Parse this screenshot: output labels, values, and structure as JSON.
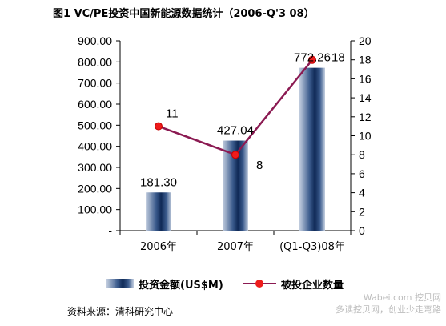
{
  "title": "图1 VC/PE投资中国新能源数据统计（2006-Q'3 08）",
  "chart_data": {
    "type": "bar",
    "categories": [
      "2006年",
      "2007年",
      "(Q1-Q3)08年"
    ],
    "series": [
      {
        "name": "投资金额(US$M)",
        "type": "bar",
        "axis": "left",
        "values": [
          181.3,
          427.04,
          772.26
        ],
        "labels": [
          "181.30",
          "427.04",
          "772.26"
        ]
      },
      {
        "name": "被投企业数量",
        "type": "line",
        "axis": "right",
        "values": [
          11,
          8,
          18
        ],
        "labels": [
          "11",
          "8",
          "18"
        ]
      }
    ],
    "y_left": {
      "range": [
        0,
        900
      ],
      "ticks": [
        "-",
        "100.00",
        "200.00",
        "300.00",
        "400.00",
        "500.00",
        "600.00",
        "700.00",
        "800.00",
        "900.00"
      ]
    },
    "y_right": {
      "range": [
        0,
        20
      ],
      "ticks": [
        "0",
        "2",
        "4",
        "6",
        "8",
        "10",
        "12",
        "14",
        "16",
        "18",
        "20"
      ]
    },
    "grid": false,
    "legend_position": "bottom",
    "colors": {
      "bar_dark": "#0f2956",
      "bar_light": "#c4cfe0",
      "line": "#8b1a52",
      "marker": "#ee1c1c"
    }
  },
  "source": "资料来源：清科研究中心",
  "watermark": {
    "line1": "Wabei.com 挖贝网",
    "line2": "多读挖贝网，创业少走弯路"
  }
}
